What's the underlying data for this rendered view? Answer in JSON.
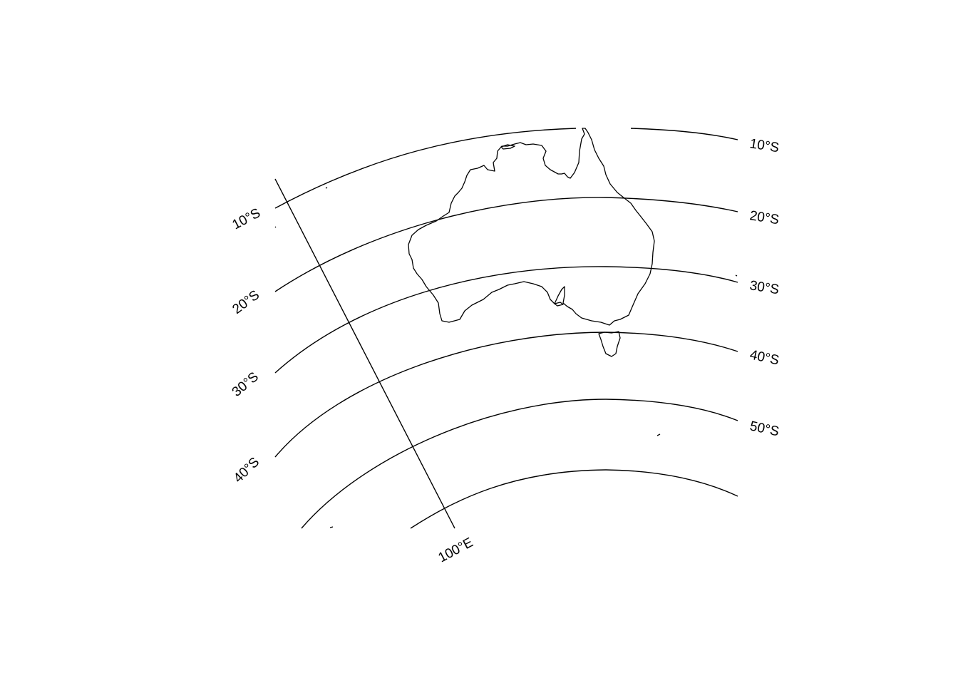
{
  "map": {
    "projection": "conic",
    "line_color": "#000000",
    "background": "#ffffff",
    "parallel_labels_right": [
      {
        "lat": -10,
        "text": "10°S"
      },
      {
        "lat": -20,
        "text": "20°S"
      },
      {
        "lat": -30,
        "text": "30°S"
      },
      {
        "lat": -40,
        "text": "40°S"
      },
      {
        "lat": -50,
        "text": "50°S"
      }
    ],
    "parallel_labels_left": [
      {
        "lat": -10,
        "text": "10°S"
      },
      {
        "lat": -20,
        "text": "20°S"
      },
      {
        "lat": -30,
        "text": "30°S"
      },
      {
        "lat": -40,
        "text": "40°S"
      }
    ],
    "meridian_labels": [
      {
        "lon": 100,
        "text": "100°E"
      }
    ],
    "features": [
      "Australia coastline",
      "Tasmania"
    ]
  }
}
